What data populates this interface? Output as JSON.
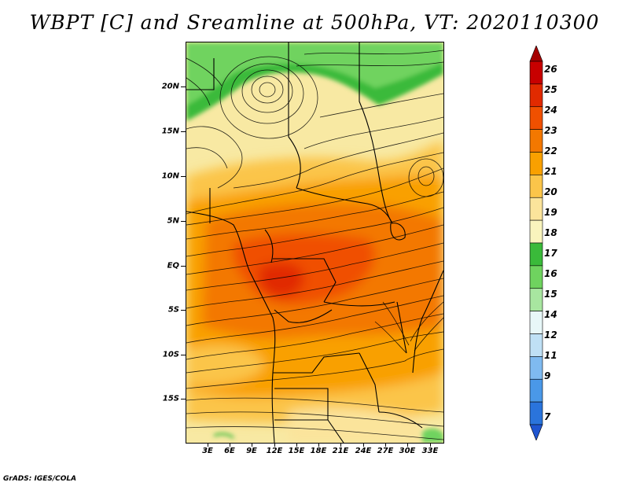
{
  "title": "WBPT [C] and Sreamline at 500hPa, VT: 2020110300",
  "credit": "GrADS: IGES/COLA",
  "map": {
    "lat_labels": [
      "20N",
      "15N",
      "10N",
      "5N",
      "EQ",
      "5S",
      "10S",
      "15S"
    ],
    "lon_labels": [
      "3E",
      "6E",
      "9E",
      "12E",
      "15E",
      "18E",
      "21E",
      "24E",
      "27E",
      "30E",
      "33E"
    ]
  },
  "colorbar": {
    "labels": [
      "26",
      "25",
      "24",
      "23",
      "22",
      "21",
      "20",
      "19",
      "18",
      "17",
      "16",
      "15",
      "14",
      "12",
      "11",
      "9",
      "7"
    ],
    "colors": [
      "#a50000",
      "#c80000",
      "#e12a00",
      "#f05000",
      "#f37800",
      "#f9a000",
      "#fbc54a",
      "#fbe49b",
      "#f9f4bd",
      "#3aba3a",
      "#6fd35f",
      "#a8e6a0",
      "#e8f7f8",
      "#bfe0f5",
      "#7fbaf0",
      "#4a98e8",
      "#2a74dc",
      "#1f55d0"
    ]
  }
}
